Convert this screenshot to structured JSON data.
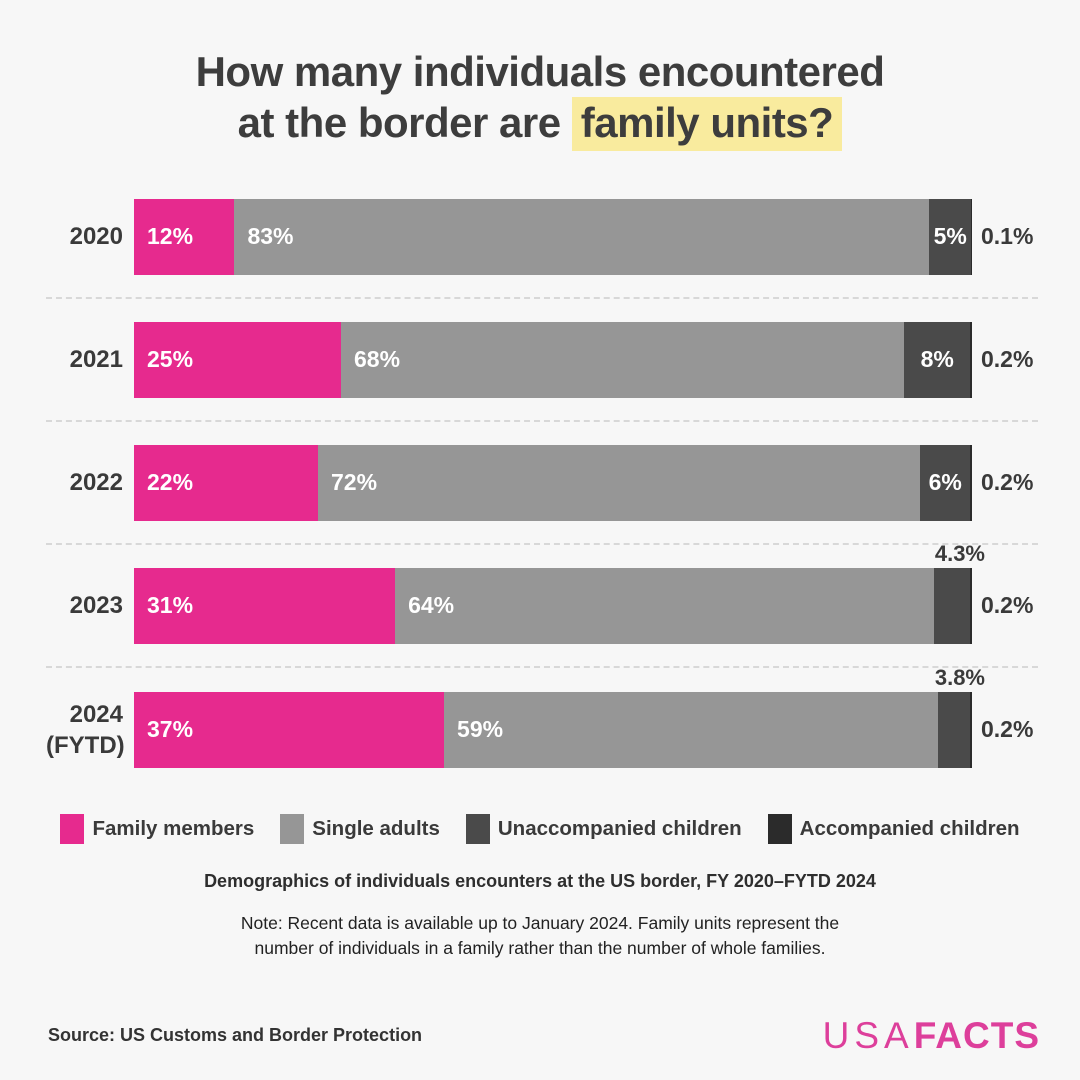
{
  "title": {
    "line1": "How many individuals encountered",
    "line2_prefix": "at the border are ",
    "line2_highlight": "family units?"
  },
  "colors": {
    "family_members": "#e62a8e",
    "single_adults": "#969696",
    "unaccompanied_children": "#4a4a4a",
    "accompanied_children": "#2b2b2b",
    "highlight_yellow": "#f9eb9e",
    "background": "#f7f7f7",
    "logo_pink": "#dd3f9b"
  },
  "chart_data": {
    "type": "bar",
    "orientation": "horizontal",
    "stacked": true,
    "grid": false,
    "legend_position": "bottom",
    "xlim": [
      0,
      100
    ],
    "categories": [
      "2020",
      "2021",
      "2022",
      "2023",
      "2024 (FYTD)"
    ],
    "series": [
      {
        "key": "family-members",
        "name": "Family members",
        "color": "#e62a8e",
        "values": [
          12,
          25,
          22,
          31,
          37
        ],
        "labels": [
          "12%",
          "25%",
          "22%",
          "31%",
          "37%"
        ]
      },
      {
        "key": "single-adults",
        "name": "Single adults",
        "color": "#969696",
        "values": [
          83,
          68,
          72,
          64,
          59
        ],
        "labels": [
          "83%",
          "68%",
          "72%",
          "64%",
          "59%"
        ]
      },
      {
        "key": "unaccompanied-children",
        "name": "Unaccompanied children",
        "color": "#4a4a4a",
        "values": [
          5,
          8,
          6,
          4.3,
          3.8
        ],
        "labels": [
          "5%",
          "8%",
          "6%",
          "4.3%",
          "3.8%"
        ]
      },
      {
        "key": "accompanied-children",
        "name": "Accompanied children",
        "color": "#2b2b2b",
        "values": [
          0.1,
          0.2,
          0.2,
          0.2,
          0.2
        ],
        "labels": [
          "0.1%",
          "0.2%",
          "0.2%",
          "0.2%",
          "0.2%"
        ]
      }
    ]
  },
  "legend": [
    {
      "label": "Family members",
      "color": "#e62a8e"
    },
    {
      "label": "Single adults",
      "color": "#969696"
    },
    {
      "label": "Unaccompanied children",
      "color": "#4a4a4a"
    },
    {
      "label": "Accompanied children",
      "color": "#2b2b2b"
    }
  ],
  "subtitle": "Demographics of individuals encounters at the US border, FY 2020–FYTD 2024",
  "note_line1": "Note: Recent data is available up to January 2024. Family units represent the",
  "note_line2": "number of individuals in a family rather than the number of whole families.",
  "source": "Source: US Customs and Border Protection",
  "logo": {
    "part1": "USA",
    "part2": "FACTS"
  }
}
